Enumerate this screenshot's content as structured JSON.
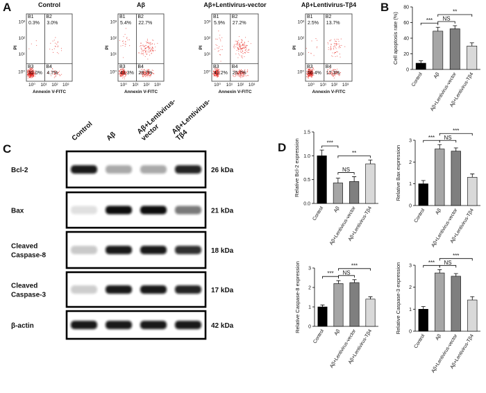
{
  "panel_labels": [
    "A",
    "B",
    "C",
    "D"
  ],
  "flow_cytometry": {
    "x_label": "Annexin V-FITC",
    "y_label": "PI",
    "ticks": [
      "10⁰",
      "10¹",
      "10²",
      "10³"
    ],
    "plots": [
      {
        "title": "Control",
        "quadrants": [
          {
            "label": "B1",
            "value": "0.3%"
          },
          {
            "label": "B2",
            "value": "3.0%"
          },
          {
            "label": "B3",
            "value": "92.0%"
          },
          {
            "label": "B4",
            "value": "4.7%"
          }
        ]
      },
      {
        "title": "Aβ",
        "quadrants": [
          {
            "label": "B1",
            "value": "5.4%"
          },
          {
            "label": "B2",
            "value": "22.7%"
          },
          {
            "label": "B3",
            "value": "43.3%"
          },
          {
            "label": "B4",
            "value": "28.7%"
          }
        ]
      },
      {
        "title": "Aβ+Lentivirus-vector",
        "quadrants": [
          {
            "label": "B1",
            "value": "5.9%"
          },
          {
            "label": "B2",
            "value": "27.2%"
          },
          {
            "label": "B3",
            "value": "41.2%"
          },
          {
            "label": "B4",
            "value": "25.7%"
          }
        ]
      },
      {
        "title": "Aβ+Lentivirus-Tβ4",
        "quadrants": [
          {
            "label": "B1",
            "value": "2.5%"
          },
          {
            "label": "B2",
            "value": "13.7%"
          },
          {
            "label": "B3",
            "value": "66.4%"
          },
          {
            "label": "B4",
            "value": "17.3%"
          }
        ]
      }
    ]
  },
  "western_blot": {
    "lanes": [
      [
        "Control"
      ],
      [
        "Aβ"
      ],
      [
        "Aβ+Lentivirus-",
        "vector"
      ],
      [
        "Aβ+Lentivirus-",
        "Tβ4"
      ]
    ],
    "rows": [
      {
        "name": [
          "Bcl-2"
        ],
        "size": "26 kDa",
        "intensity": [
          0.95,
          0.35,
          0.35,
          0.9
        ]
      },
      {
        "name": [
          "Bax"
        ],
        "size": "21 kDa",
        "intensity": [
          0.12,
          1,
          1,
          0.55
        ]
      },
      {
        "name": [
          "Cleaved",
          "Caspase-8"
        ],
        "size": "18 kDa",
        "intensity": [
          0.22,
          0.95,
          0.95,
          0.85
        ]
      },
      {
        "name": [
          "Cleaved",
          "Caspase-3"
        ],
        "size": "17 kDa",
        "intensity": [
          0.2,
          0.95,
          0.95,
          0.9
        ]
      },
      {
        "name": [
          "β-actin"
        ],
        "size": "42 kDa",
        "intensity": [
          0.95,
          0.95,
          0.95,
          0.95
        ]
      }
    ]
  },
  "chart_data": [
    {
      "type": "bar",
      "y_label": "Cell apoptosis rate (%)",
      "categories": [
        "Control",
        "Aβ",
        "Aβ+Lentivirus-vector",
        "Aβ+Lentivirus-Tβ4"
      ],
      "values": [
        8,
        49,
        52,
        30
      ],
      "errors": [
        3,
        5,
        4,
        4
      ],
      "colors": [
        "#000000",
        "#a6a6a6",
        "#7f7f7f",
        "#d9d9d9"
      ],
      "ylim": [
        0,
        80
      ],
      "yticks": [
        0,
        20,
        40,
        60,
        80
      ],
      "annotations": [
        {
          "label": "***",
          "from": "Control",
          "to": "Aβ"
        },
        {
          "label": "NS",
          "from": "Aβ",
          "to": "Aβ+Lentivirus-vector"
        },
        {
          "label": "**",
          "from": "Aβ",
          "to": "Aβ+Lentivirus-Tβ4"
        }
      ]
    },
    {
      "type": "bar",
      "y_label": "Relative Bcl-2 expression",
      "categories": [
        "Control",
        "Aβ",
        "Aβ+Lentivirus-vector",
        "Aβ+Lentivirus-Tβ4"
      ],
      "values": [
        1.0,
        0.43,
        0.46,
        0.83
      ],
      "errors": [
        0.12,
        0.1,
        0.1,
        0.08
      ],
      "colors": [
        "#000000",
        "#a6a6a6",
        "#7f7f7f",
        "#d9d9d9"
      ],
      "ylim": [
        0,
        1.5
      ],
      "yticks": [
        {
          "value": 0,
          "label": "0.0"
        },
        0.5,
        {
          "value": 1,
          "label": "1.0"
        },
        1.5
      ],
      "annotations": [
        {
          "label": "***",
          "from": "Control",
          "to": "Aβ"
        },
        {
          "label": "NS",
          "from": "Aβ",
          "to": "Aβ+Lentivirus-vector"
        },
        {
          "label": "**",
          "from": "Aβ",
          "to": "Aβ+Lentivirus-Tβ4"
        }
      ]
    },
    {
      "type": "bar",
      "y_label": "Relative Bax expression",
      "categories": [
        "Control",
        "Aβ",
        "Aβ+Lentivirus-vector",
        "Aβ+Lentivirus-Tβ4"
      ],
      "values": [
        1.0,
        2.6,
        2.5,
        1.3
      ],
      "errors": [
        0.15,
        0.2,
        0.15,
        0.15
      ],
      "colors": [
        "#000000",
        "#a6a6a6",
        "#7f7f7f",
        "#d9d9d9"
      ],
      "ylim": [
        0,
        3
      ],
      "yticks": [
        0,
        1,
        2,
        3
      ],
      "annotations": [
        {
          "label": "***",
          "from": "Control",
          "to": "Aβ"
        },
        {
          "label": "NS",
          "from": "Aβ",
          "to": "Aβ+Lentivirus-vector"
        },
        {
          "label": "***",
          "from": "Aβ",
          "to": "Aβ+Lentivirus-Tβ4"
        }
      ]
    },
    {
      "type": "bar",
      "y_label": "Relative Caspase-8 expression",
      "categories": [
        "Control",
        "Aβ",
        "Aβ+Lentivirus-vector",
        "Aβ+Lentivirus-Tβ4"
      ],
      "values": [
        1.0,
        2.2,
        2.25,
        1.4
      ],
      "errors": [
        0.1,
        0.15,
        0.15,
        0.12
      ],
      "colors": [
        "#000000",
        "#a6a6a6",
        "#7f7f7f",
        "#d9d9d9"
      ],
      "ylim": [
        0,
        3
      ],
      "yticks": [
        0,
        1,
        2,
        3
      ],
      "annotations": [
        {
          "label": "***",
          "from": "Control",
          "to": "Aβ"
        },
        {
          "label": "NS",
          "from": "Aβ",
          "to": "Aβ+Lentivirus-vector"
        },
        {
          "label": "***",
          "from": "Aβ",
          "to": "Aβ+Lentivirus-Tβ4"
        }
      ]
    },
    {
      "type": "bar",
      "y_label": "Relative Caspase-3 expression",
      "categories": [
        "Control",
        "Aβ",
        "Aβ+Lentivirus-vector",
        "Aβ+Lentivirus-Tβ4"
      ],
      "values": [
        1.0,
        2.65,
        2.5,
        1.42
      ],
      "errors": [
        0.12,
        0.15,
        0.12,
        0.15
      ],
      "colors": [
        "#000000",
        "#a6a6a6",
        "#7f7f7f",
        "#d9d9d9"
      ],
      "ylim": [
        0,
        3
      ],
      "yticks": [
        0,
        1,
        2,
        3
      ],
      "annotations": [
        {
          "label": "***",
          "from": "Control",
          "to": "Aβ"
        },
        {
          "label": "NS",
          "from": "Aβ",
          "to": "Aβ+Lentivirus-vector"
        },
        {
          "label": "***",
          "from": "Aβ",
          "to": "Aβ+Lentivirus-Tβ4"
        }
      ]
    }
  ]
}
